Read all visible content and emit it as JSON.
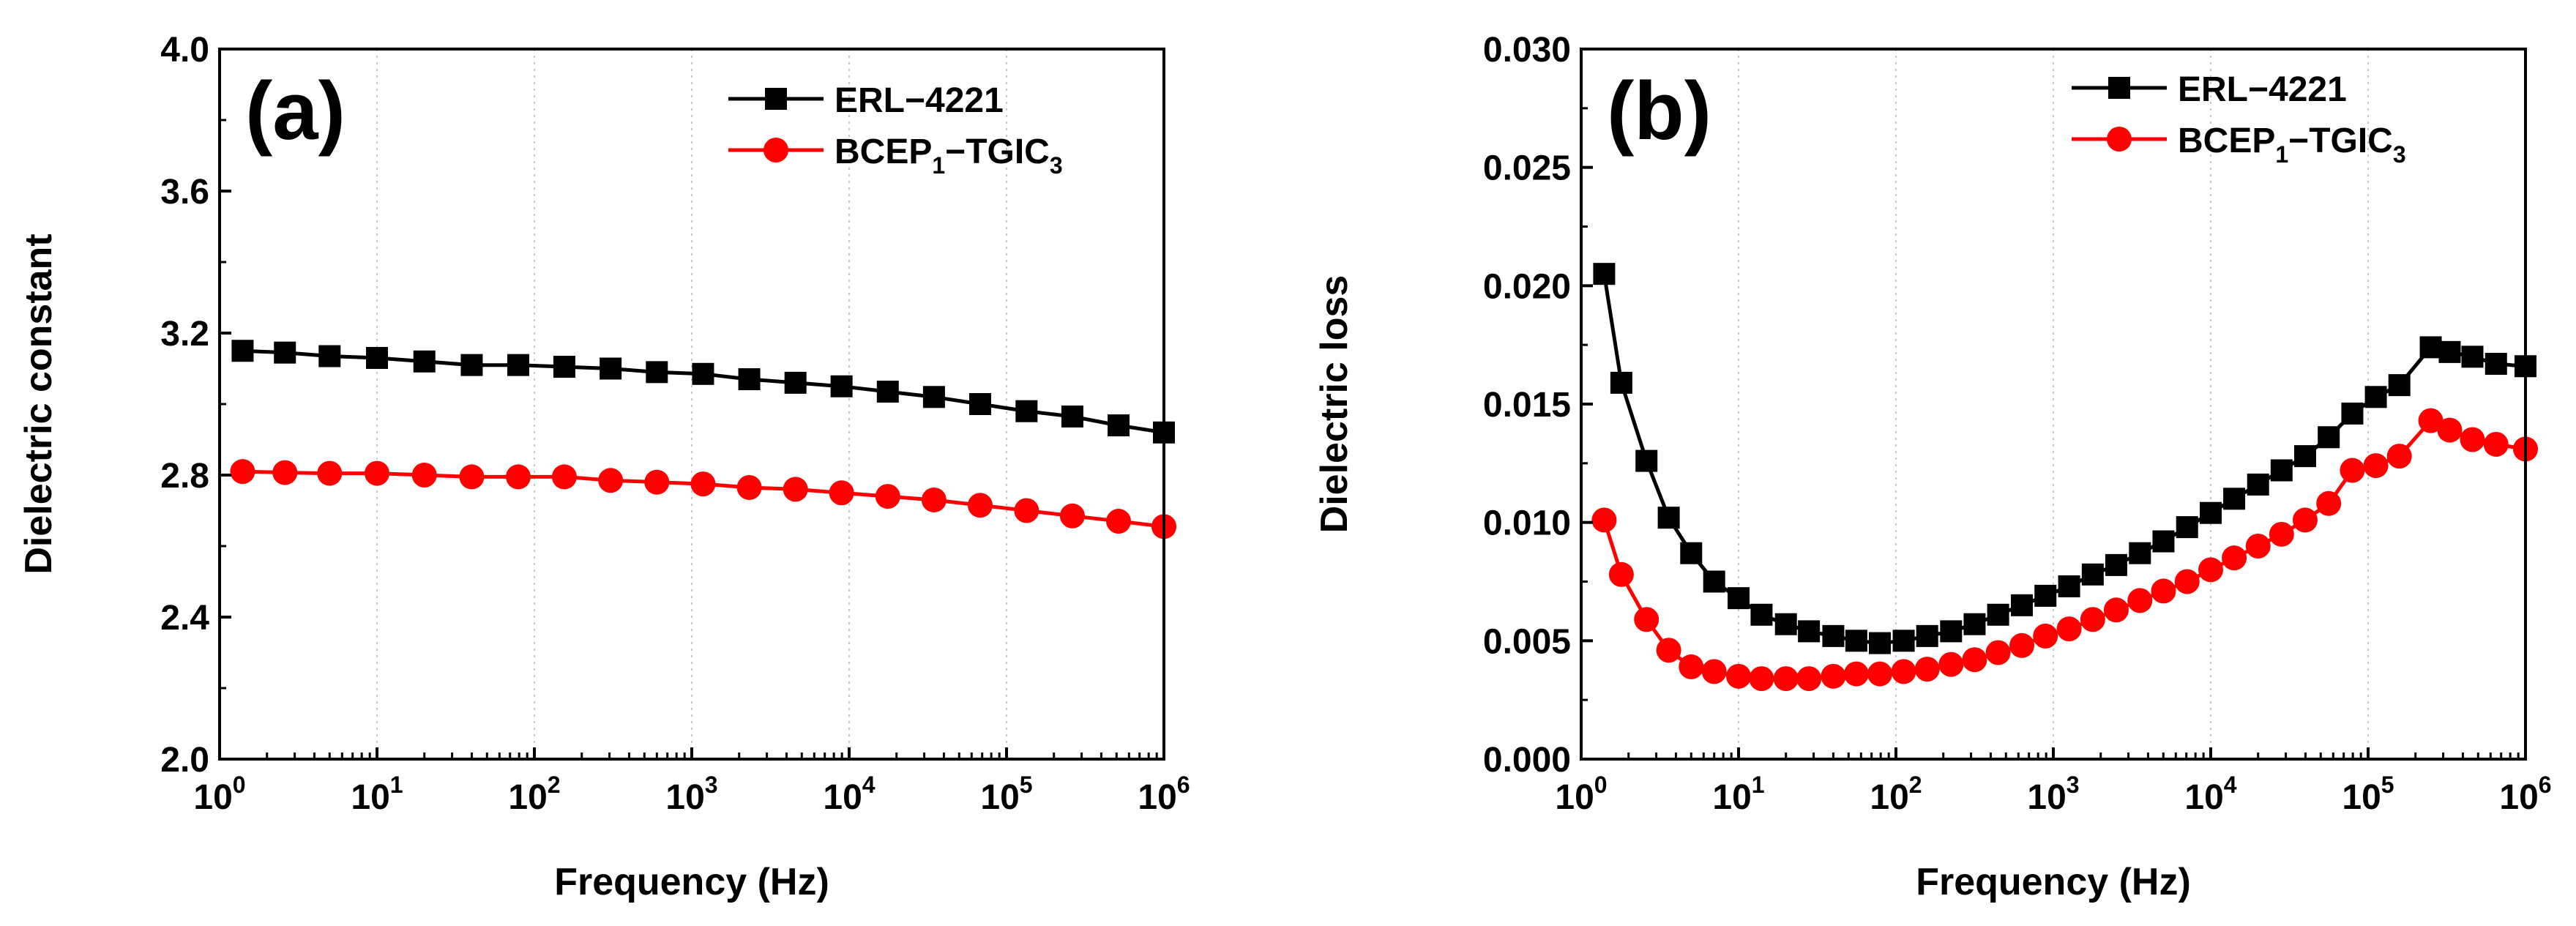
{
  "charts": [
    {
      "panel_label": "(a)",
      "chart_data": {
        "type": "line",
        "xlabel": "Frequency (Hz)",
        "ylabel": "Dielectric constant",
        "xscale": "log",
        "xlim": [
          1,
          1000000
        ],
        "ylim": [
          2.0,
          4.0
        ],
        "x_ticks": [
          {
            "value": 1,
            "base": "10",
            "exp": "0"
          },
          {
            "value": 10,
            "base": "10",
            "exp": "1"
          },
          {
            "value": 100,
            "base": "10",
            "exp": "2"
          },
          {
            "value": 1000,
            "base": "10",
            "exp": "3"
          },
          {
            "value": 10000,
            "base": "10",
            "exp": "4"
          },
          {
            "value": 100000,
            "base": "10",
            "exp": "5"
          },
          {
            "value": 1000000,
            "base": "10",
            "exp": "6"
          }
        ],
        "y_ticks": [
          {
            "value": 2.0,
            "label": "2.0"
          },
          {
            "value": 2.4,
            "label": "2.4"
          },
          {
            "value": 2.8,
            "label": "2.8"
          },
          {
            "value": 3.2,
            "label": "3.2"
          },
          {
            "value": 3.6,
            "label": "3.6"
          },
          {
            "value": 4.0,
            "label": "4.0"
          }
        ],
        "grid": "vertical dotted",
        "legend_position": "top-right",
        "series": [
          {
            "name": "ERL-4221",
            "legend": {
              "main": "ERL−4221"
            },
            "color": "#000000",
            "marker": "square",
            "x": [
              1.4,
              2.6,
              5,
              10,
              20,
              40,
              79,
              155,
              305,
              600,
              1180,
              2320,
              4560,
              8950,
              17600,
              34600,
              68000,
              134000,
              262000,
              515000,
              1000000
            ],
            "y": [
              3.15,
              3.145,
              3.135,
              3.13,
              3.12,
              3.11,
              3.11,
              3.105,
              3.1,
              3.09,
              3.085,
              3.07,
              3.06,
              3.05,
              3.035,
              3.02,
              3.0,
              2.98,
              2.965,
              2.94,
              2.92
            ]
          },
          {
            "name": "BCEP1-TGIC3",
            "legend": {
              "main": "BCEP",
              "sub1": "1",
              "mid": "−TGIC",
              "sub2": "3"
            },
            "color": "#ff0000",
            "marker": "circle",
            "x": [
              1.4,
              2.6,
              5,
              10,
              20,
              40,
              79,
              155,
              305,
              600,
              1180,
              2320,
              4560,
              8950,
              17600,
              34600,
              68000,
              134000,
              262000,
              515000,
              1000000
            ],
            "y": [
              2.81,
              2.807,
              2.805,
              2.805,
              2.8,
              2.795,
              2.795,
              2.795,
              2.785,
              2.78,
              2.775,
              2.765,
              2.76,
              2.75,
              2.74,
              2.73,
              2.715,
              2.7,
              2.685,
              2.67,
              2.655
            ]
          }
        ]
      }
    },
    {
      "panel_label": "(b)",
      "chart_data": {
        "type": "line",
        "xlabel": "Frequency (Hz)",
        "ylabel": "Dielectric loss",
        "xscale": "log",
        "xlim": [
          1,
          1000000
        ],
        "ylim": [
          0.0,
          0.03
        ],
        "x_ticks": [
          {
            "value": 1,
            "base": "10",
            "exp": "0"
          },
          {
            "value": 10,
            "base": "10",
            "exp": "1"
          },
          {
            "value": 100,
            "base": "10",
            "exp": "2"
          },
          {
            "value": 1000,
            "base": "10",
            "exp": "3"
          },
          {
            "value": 10000,
            "base": "10",
            "exp": "4"
          },
          {
            "value": 100000,
            "base": "10",
            "exp": "5"
          },
          {
            "value": 1000000,
            "base": "10",
            "exp": "6"
          }
        ],
        "y_ticks": [
          {
            "value": 0.0,
            "label": "0.000"
          },
          {
            "value": 0.005,
            "label": "0.005"
          },
          {
            "value": 0.01,
            "label": "0.010"
          },
          {
            "value": 0.015,
            "label": "0.015"
          },
          {
            "value": 0.02,
            "label": "0.020"
          },
          {
            "value": 0.025,
            "label": "0.025"
          },
          {
            "value": 0.03,
            "label": "0.030"
          }
        ],
        "grid": "vertical dotted",
        "legend_position": "top-right",
        "series": [
          {
            "name": "ERL-4221",
            "legend": {
              "main": "ERL−4221"
            },
            "color": "#000000",
            "marker": "square",
            "x": [
              1.4,
              1.8,
              2.6,
              3.6,
              5,
              7,
              10,
              14,
              20,
              28,
              40,
              56,
              79,
              112,
              158,
              224,
              316,
              446,
              631,
              891,
              1260,
              1780,
              2510,
              3550,
              5010,
              7080,
              10000,
              14100,
              20000,
              28200,
              39800,
              56200,
              79400,
              112000,
              158000,
              250000,
              330000,
              460000,
              650000,
              1000000
            ],
            "y": [
              0.0205,
              0.0159,
              0.0126,
              0.0102,
              0.0087,
              0.0075,
              0.0068,
              0.0061,
              0.0057,
              0.0054,
              0.0052,
              0.005,
              0.0049,
              0.005,
              0.0052,
              0.0054,
              0.0057,
              0.0061,
              0.0065,
              0.0069,
              0.0073,
              0.0078,
              0.0082,
              0.0087,
              0.0092,
              0.0098,
              0.0104,
              0.011,
              0.0116,
              0.0122,
              0.0128,
              0.0136,
              0.0146,
              0.0153,
              0.0158,
              0.0174,
              0.0172,
              0.017,
              0.0167,
              0.0166
            ]
          },
          {
            "name": "BCEP1-TGIC3",
            "legend": {
              "main": "BCEP",
              "sub1": "1",
              "mid": "−TGIC",
              "sub2": "3"
            },
            "color": "#ff0000",
            "marker": "circle",
            "x": [
              1.4,
              1.8,
              2.6,
              3.6,
              5,
              7,
              10,
              14,
              20,
              28,
              40,
              56,
              79,
              112,
              158,
              224,
              316,
              446,
              631,
              891,
              1260,
              1780,
              2510,
              3550,
              5010,
              7080,
              10000,
              14100,
              20000,
              28200,
              39800,
              56200,
              79400,
              112000,
              158000,
              250000,
              330000,
              460000,
              650000,
              1000000
            ],
            "y": [
              0.0101,
              0.0078,
              0.0059,
              0.0046,
              0.0039,
              0.0037,
              0.0035,
              0.0034,
              0.0034,
              0.0034,
              0.0035,
              0.0036,
              0.0036,
              0.0037,
              0.0038,
              0.004,
              0.0042,
              0.0045,
              0.0048,
              0.0052,
              0.0055,
              0.0059,
              0.0063,
              0.0067,
              0.0071,
              0.0075,
              0.008,
              0.0085,
              0.009,
              0.0095,
              0.0101,
              0.0108,
              0.0122,
              0.0124,
              0.0128,
              0.0143,
              0.0139,
              0.0135,
              0.0133,
              0.0131
            ]
          }
        ]
      }
    }
  ]
}
